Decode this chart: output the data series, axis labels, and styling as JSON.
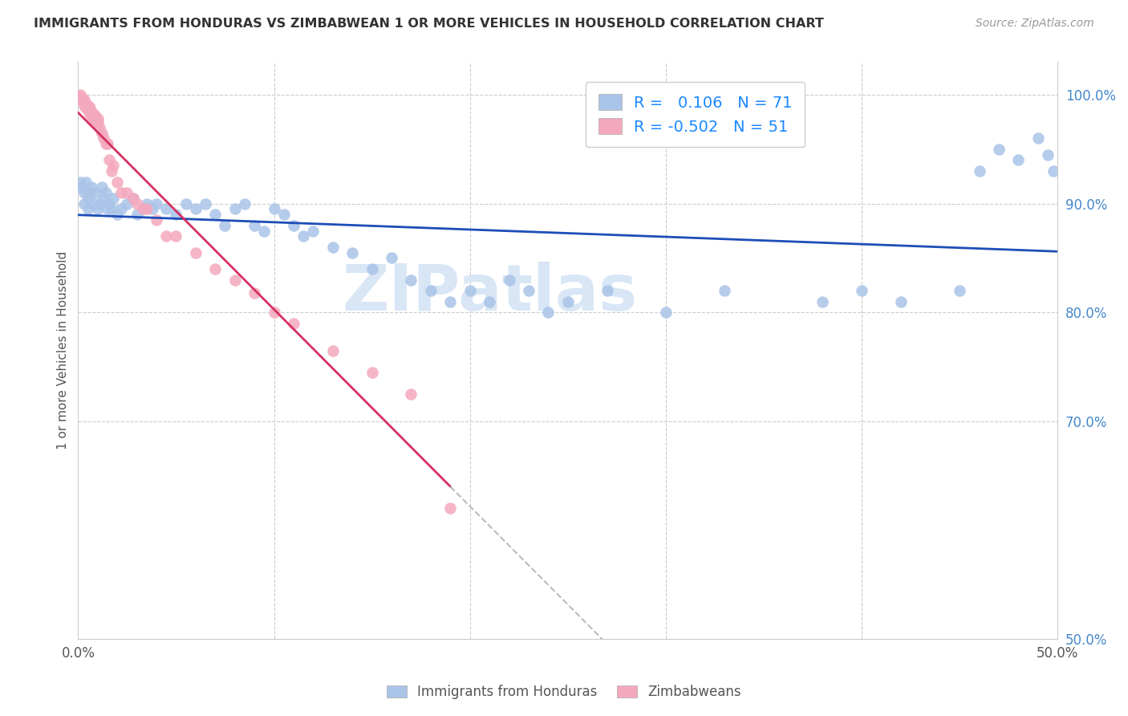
{
  "title": "IMMIGRANTS FROM HONDURAS VS ZIMBABWEAN 1 OR MORE VEHICLES IN HOUSEHOLD CORRELATION CHART",
  "source": "Source: ZipAtlas.com",
  "ylabel": "1 or more Vehicles in Household",
  "xlim": [
    0.0,
    0.5
  ],
  "ylim": [
    0.5,
    1.03
  ],
  "blue_color": "#aac4e8",
  "pink_color": "#f4a8be",
  "blue_line_color": "#1e4db7",
  "pink_line_color": "#d43060",
  "blue_label": "Immigrants from Honduras",
  "pink_label": "Zimbabweans",
  "blue_R": "0.106",
  "blue_N": "71",
  "pink_R": "-0.502",
  "pink_N": "51",
  "legend_R_color": "#1a88ff",
  "watermark": "ZIPatlas",
  "watermark_color": "#d8e6f5",
  "blue_x": [
    0.001,
    0.002,
    0.003,
    0.003,
    0.004,
    0.005,
    0.005,
    0.006,
    0.007,
    0.008,
    0.009,
    0.01,
    0.011,
    0.012,
    0.013,
    0.014,
    0.015,
    0.016,
    0.017,
    0.018,
    0.02,
    0.022,
    0.025,
    0.028,
    0.03,
    0.033,
    0.035,
    0.038,
    0.04,
    0.045,
    0.05,
    0.055,
    0.06,
    0.065,
    0.07,
    0.075,
    0.08,
    0.085,
    0.09,
    0.095,
    0.1,
    0.105,
    0.11,
    0.115,
    0.12,
    0.13,
    0.14,
    0.15,
    0.16,
    0.17,
    0.18,
    0.19,
    0.2,
    0.21,
    0.22,
    0.23,
    0.24,
    0.25,
    0.27,
    0.3,
    0.33,
    0.38,
    0.4,
    0.42,
    0.45,
    0.46,
    0.47,
    0.48,
    0.49,
    0.495,
    0.498
  ],
  "blue_y": [
    0.92,
    0.915,
    0.91,
    0.9,
    0.92,
    0.905,
    0.895,
    0.91,
    0.915,
    0.9,
    0.91,
    0.895,
    0.9,
    0.915,
    0.905,
    0.91,
    0.895,
    0.9,
    0.895,
    0.905,
    0.89,
    0.895,
    0.9,
    0.905,
    0.89,
    0.895,
    0.9,
    0.895,
    0.9,
    0.895,
    0.89,
    0.9,
    0.895,
    0.9,
    0.89,
    0.88,
    0.895,
    0.9,
    0.88,
    0.875,
    0.895,
    0.89,
    0.88,
    0.87,
    0.875,
    0.86,
    0.855,
    0.84,
    0.85,
    0.83,
    0.82,
    0.81,
    0.82,
    0.81,
    0.83,
    0.82,
    0.8,
    0.81,
    0.82,
    0.8,
    0.82,
    0.81,
    0.82,
    0.81,
    0.82,
    0.93,
    0.95,
    0.94,
    0.96,
    0.945,
    0.93
  ],
  "pink_x": [
    0.001,
    0.001,
    0.002,
    0.002,
    0.003,
    0.003,
    0.003,
    0.004,
    0.004,
    0.005,
    0.005,
    0.005,
    0.006,
    0.006,
    0.006,
    0.007,
    0.007,
    0.008,
    0.008,
    0.009,
    0.009,
    0.01,
    0.01,
    0.011,
    0.012,
    0.013,
    0.014,
    0.015,
    0.016,
    0.017,
    0.018,
    0.02,
    0.022,
    0.025,
    0.028,
    0.03,
    0.033,
    0.035,
    0.04,
    0.045,
    0.05,
    0.06,
    0.07,
    0.08,
    0.09,
    0.1,
    0.11,
    0.13,
    0.15,
    0.17,
    0.19
  ],
  "pink_y": [
    1.0,
    0.998,
    0.997,
    0.995,
    0.996,
    0.993,
    0.99,
    0.992,
    0.988,
    0.99,
    0.987,
    0.985,
    0.988,
    0.985,
    0.982,
    0.984,
    0.98,
    0.982,
    0.978,
    0.98,
    0.976,
    0.978,
    0.975,
    0.97,
    0.965,
    0.96,
    0.955,
    0.955,
    0.94,
    0.93,
    0.935,
    0.92,
    0.91,
    0.91,
    0.905,
    0.9,
    0.895,
    0.895,
    0.885,
    0.87,
    0.87,
    0.855,
    0.84,
    0.83,
    0.818,
    0.8,
    0.79,
    0.765,
    0.745,
    0.725,
    0.62
  ]
}
